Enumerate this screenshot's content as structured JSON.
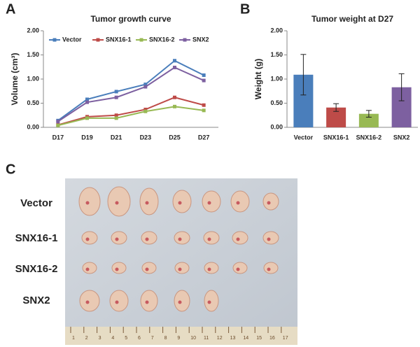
{
  "chart_data": [
    {
      "type": "line",
      "panel": "A",
      "title": "Tumor growth curve",
      "ylabel": "Volume (cm³)",
      "categories": [
        "D17",
        "D19",
        "D21",
        "D23",
        "D25",
        "D27"
      ],
      "series": [
        {
          "name": "Vector",
          "color": "#4a7ebb",
          "values": [
            0.14,
            0.58,
            0.74,
            0.89,
            1.38,
            1.08
          ]
        },
        {
          "name": "SNX16-1",
          "color": "#be4b48",
          "values": [
            0.05,
            0.22,
            0.25,
            0.37,
            0.62,
            0.46
          ]
        },
        {
          "name": "SNX16-2",
          "color": "#98b954",
          "values": [
            0.04,
            0.19,
            0.19,
            0.33,
            0.43,
            0.35
          ]
        },
        {
          "name": "SNX2",
          "color": "#7d60a0",
          "values": [
            0.12,
            0.52,
            0.62,
            0.84,
            1.24,
            0.97
          ]
        }
      ],
      "ylim": [
        0,
        2
      ],
      "yticks": [
        {
          "value": 0,
          "label": "0.00"
        },
        {
          "value": 0.5,
          "label": "0.50"
        },
        {
          "value": 1,
          "label": "1.00"
        },
        {
          "value": 1.5,
          "label": "1.50"
        },
        {
          "value": 2,
          "label": "2.00"
        }
      ],
      "grid": false,
      "legend": "top"
    },
    {
      "type": "bar",
      "panel": "B",
      "title": "Tumor weight at D27",
      "ylabel": "Weight (g)",
      "categories": [
        "Vector",
        "SNX16-1",
        "SNX16-2",
        "SNX2"
      ],
      "values": [
        1.09,
        0.41,
        0.28,
        0.83
      ],
      "errors": [
        0.42,
        0.08,
        0.07,
        0.28
      ],
      "colors": [
        "#4a7ebb",
        "#be4b48",
        "#98b954",
        "#7d60a0"
      ],
      "ylim": [
        0,
        2
      ],
      "yticks": [
        {
          "value": 0,
          "label": "0.00"
        },
        {
          "value": 0.5,
          "label": "0.50"
        },
        {
          "value": 1,
          "label": "1.00"
        },
        {
          "value": 1.5,
          "label": "1.50"
        },
        {
          "value": 2,
          "label": "2.00"
        }
      ],
      "grid": false
    }
  ],
  "photo": {
    "panel": "C",
    "rows": [
      "Vector",
      "SNX16-1",
      "SNX16-2",
      "SNX2"
    ],
    "ruler": [
      "1",
      "2",
      "3",
      "4",
      "5",
      "6",
      "7",
      "8",
      "9",
      "10",
      "11",
      "12",
      "13",
      "14",
      "15",
      "16",
      "17"
    ]
  }
}
